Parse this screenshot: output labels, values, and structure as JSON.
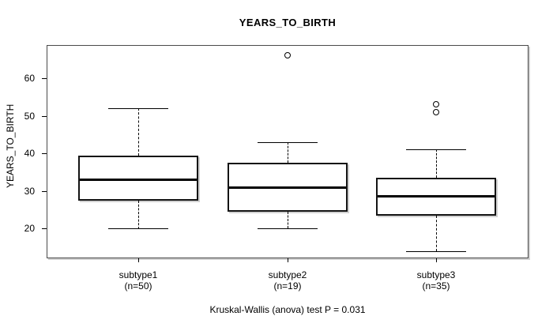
{
  "title": "YEARS_TO_BIRTH",
  "y_axis": {
    "label": "YEARS_TO_BIRTH",
    "tick_labels": [
      "20",
      "30",
      "40",
      "50",
      "60"
    ]
  },
  "footer": "Kruskal-Wallis (anova) test P = 0.031",
  "chart_data": {
    "type": "boxplot",
    "title": "YEARS_TO_BIRTH",
    "ylabel": "YEARS_TO_BIRTH",
    "yticks": [
      20,
      30,
      40,
      50,
      60
    ],
    "ylim": [
      12.1,
      68.8
    ],
    "grid": false,
    "annotation": "Kruskal-Wallis (anova) test P = 0.031",
    "p_value": 0.031,
    "categories": [
      "subtype1",
      "subtype2",
      "subtype3"
    ],
    "groups": [
      {
        "label": "subtype1",
        "n": 50,
        "n_label": "(n=50)",
        "whisker_low": 20,
        "q1": 27.5,
        "median": 33,
        "q3": 39.5,
        "whisker_high": 52,
        "outliers": []
      },
      {
        "label": "subtype2",
        "n": 19,
        "n_label": "(n=19)",
        "whisker_low": 20,
        "q1": 24.5,
        "median": 31,
        "q3": 37.5,
        "whisker_high": 43,
        "outliers": [
          66
        ]
      },
      {
        "label": "subtype3",
        "n": 35,
        "n_label": "(n=35)",
        "whisker_low": 14,
        "q1": 23.5,
        "median": 28.5,
        "q3": 33.5,
        "whisker_high": 41,
        "outliers": [
          51,
          53
        ]
      }
    ],
    "colors": {
      "line": "#000000",
      "box_fill": "#ffffff",
      "background": "#ffffff"
    }
  }
}
